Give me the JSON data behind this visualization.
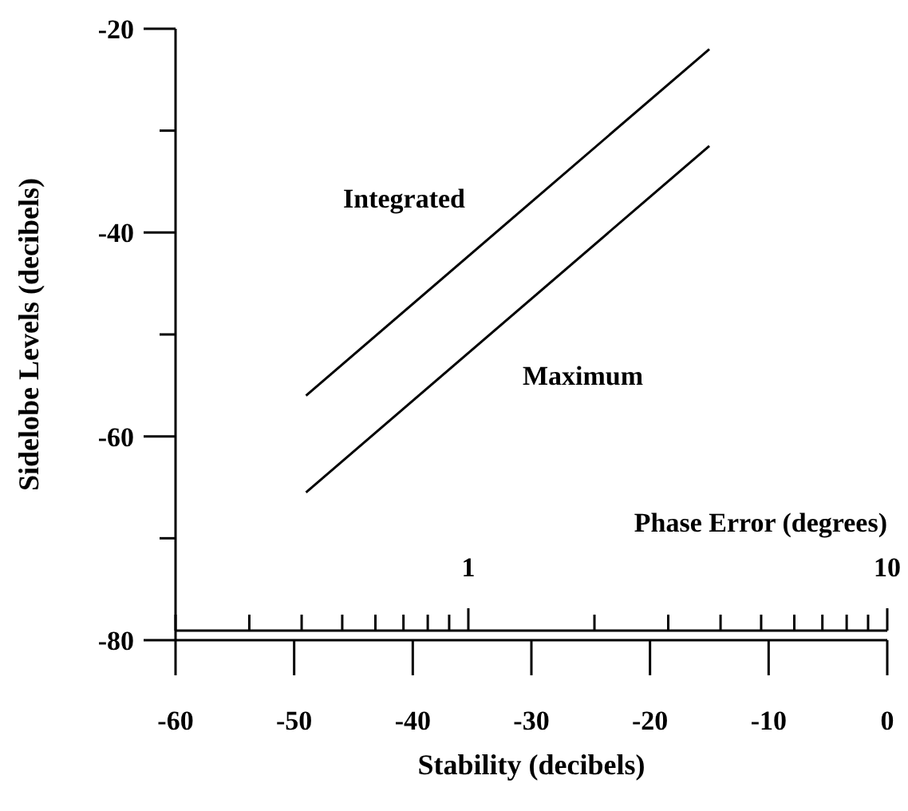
{
  "chart_data": {
    "type": "line",
    "xlabel": "Stability (decibels)",
    "ylabel": "Sidelobe Levels (decibels)",
    "x2label": "Phase Error (degrees)",
    "xlim": [
      -60,
      0
    ],
    "xticks": [
      -60,
      -50,
      -40,
      -30,
      -20,
      -10,
      0
    ],
    "ylim": [
      -80,
      -20
    ],
    "yticks": [
      -80,
      {
        "value": -70,
        "label": null
      },
      -60,
      {
        "value": -50,
        "label": null
      },
      -40,
      {
        "value": -30,
        "label": null
      },
      -20
    ],
    "x2lim": [
      0.2,
      10
    ],
    "x2ticks": [
      {
        "value": 0.2,
        "label": null
      },
      {
        "value": 0.3,
        "label": null
      },
      {
        "value": 0.4,
        "label": null
      },
      {
        "value": 0.5,
        "label": null
      },
      {
        "value": 0.6,
        "label": null
      },
      {
        "value": 0.7,
        "label": null
      },
      {
        "value": 0.8,
        "label": null
      },
      {
        "value": 0.9,
        "label": null
      },
      1,
      {
        "value": 2,
        "label": null
      },
      {
        "value": 3,
        "label": null
      },
      {
        "value": 4,
        "label": null
      },
      {
        "value": 5,
        "label": null
      },
      {
        "value": 6,
        "label": null
      },
      {
        "value": 7,
        "label": null
      },
      {
        "value": 8,
        "label": null
      },
      {
        "value": 9,
        "label": null
      },
      10
    ],
    "log": "x2",
    "grid": false,
    "x": [
      -49,
      -15
    ],
    "legend": false,
    "marker": "none",
    "line_style": "solid",
    "series": [
      {
        "name": "Integrated",
        "color": "#000000",
        "values": [
          -56,
          -22
        ]
      },
      {
        "name": "Maximum",
        "color": "#000000",
        "values": [
          -65.5,
          -31.5
        ]
      }
    ]
  }
}
